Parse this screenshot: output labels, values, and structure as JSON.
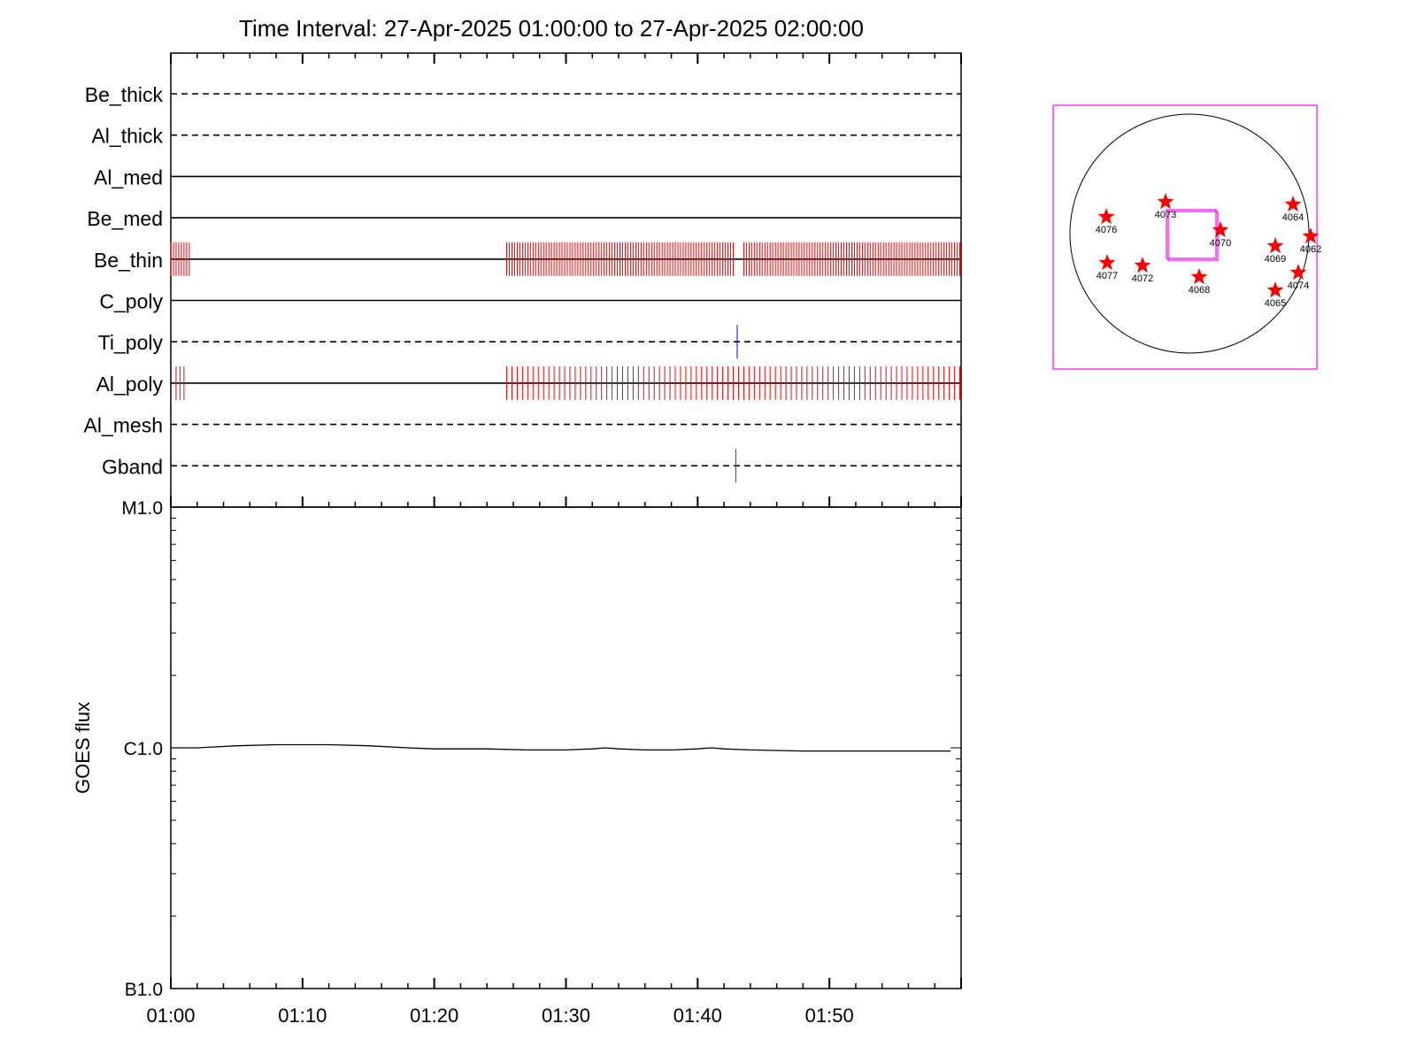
{
  "title": "Time Interval: 27-Apr-2025 01:00:00 to 27-Apr-2025 02:00:00",
  "colors": {
    "background": "#ffffff",
    "axis": "#000000",
    "exposure_red": "#ff0000",
    "ti_blue": "#0000ff",
    "fov_magenta": "#ff00ff",
    "star_red": "#ff0000"
  },
  "chart_data": [
    {
      "type": "timeline",
      "x_unit": "minutes after 01:00",
      "xlim": [
        0,
        60
      ],
      "rows": [
        {
          "label": "Be_thick",
          "line": "dashed",
          "marks": []
        },
        {
          "label": "Al_thick",
          "line": "dashed",
          "marks": []
        },
        {
          "label": "Al_med",
          "line": "solid",
          "marks": []
        },
        {
          "label": "Be_med",
          "line": "solid",
          "marks": []
        },
        {
          "label": "Be_thin",
          "line": "solid",
          "mark_color": "#ff0000",
          "marks": [
            {
              "from": 0.0,
              "to": 1.5,
              "step": 0.2
            },
            {
              "from": 25.5,
              "to": 42.8,
              "step": 0.2
            },
            {
              "from": 43.5,
              "to": 60.0,
              "step": 0.2
            }
          ]
        },
        {
          "label": "C_poly",
          "line": "solid",
          "marks": []
        },
        {
          "label": "Ti_poly",
          "line": "dashed",
          "mark_color": "#0000ff",
          "marks": [
            {
              "at": 43.0
            }
          ]
        },
        {
          "label": "Al_poly",
          "line": "solid",
          "mark_color": "#ff0000",
          "marks": [
            {
              "from": 0.4,
              "to": 1.0,
              "step": 0.3
            },
            {
              "from": 25.5,
              "to": 60.0,
              "step": 0.4
            }
          ]
        },
        {
          "label": "Al_mesh",
          "line": "dashed",
          "marks": []
        },
        {
          "label": "Gband",
          "line": "dashed",
          "mark_color": "#ff0000",
          "marks": [
            {
              "at": 42.9
            }
          ]
        }
      ]
    },
    {
      "type": "line",
      "ylabel": "GOES flux",
      "yscale": "log",
      "y_unit": "W/m^2",
      "ylim": [
        1e-07,
        1e-05
      ],
      "y_ticks": [
        {
          "value": 1e-05,
          "label": "M1.0"
        },
        {
          "value": 1e-06,
          "label": "C1.0"
        },
        {
          "value": 1e-07,
          "label": "B1.0"
        }
      ],
      "xlim": [
        0,
        60
      ],
      "x_ticks": [
        {
          "value": 0,
          "label": "01:00"
        },
        {
          "value": 10,
          "label": "01:10"
        },
        {
          "value": 20,
          "label": "01:20"
        },
        {
          "value": 30,
          "label": "01:30"
        },
        {
          "value": 40,
          "label": "01:40"
        },
        {
          "value": 50,
          "label": "01:50"
        }
      ],
      "series": [
        {
          "x": [
            0,
            2,
            5,
            8,
            12,
            15,
            18,
            20,
            24,
            27,
            30,
            32,
            33,
            34,
            36,
            38,
            40,
            41,
            42,
            44,
            48,
            52,
            56,
            59.2
          ],
          "y": [
            1e-06,
            1e-06,
            1.02e-06,
            1.03e-06,
            1.03e-06,
            1.02e-06,
            1e-06,
            9.9e-07,
            9.9e-07,
            9.8e-07,
            9.8e-07,
            9.9e-07,
            1e-06,
            9.9e-07,
            9.8e-07,
            9.8e-07,
            9.9e-07,
            1e-06,
            9.9e-07,
            9.8e-07,
            9.7e-07,
            9.7e-07,
            9.7e-07,
            9.7e-07
          ]
        }
      ]
    }
  ],
  "locator": {
    "regions": [
      {
        "label": "4076"
      },
      {
        "label": "4073"
      },
      {
        "label": "4070"
      },
      {
        "label": "4064"
      },
      {
        "label": "4062"
      },
      {
        "label": "4069"
      },
      {
        "label": "4077"
      },
      {
        "label": "4072"
      },
      {
        "label": "4068"
      },
      {
        "label": "4074"
      },
      {
        "label": "4065"
      }
    ]
  }
}
